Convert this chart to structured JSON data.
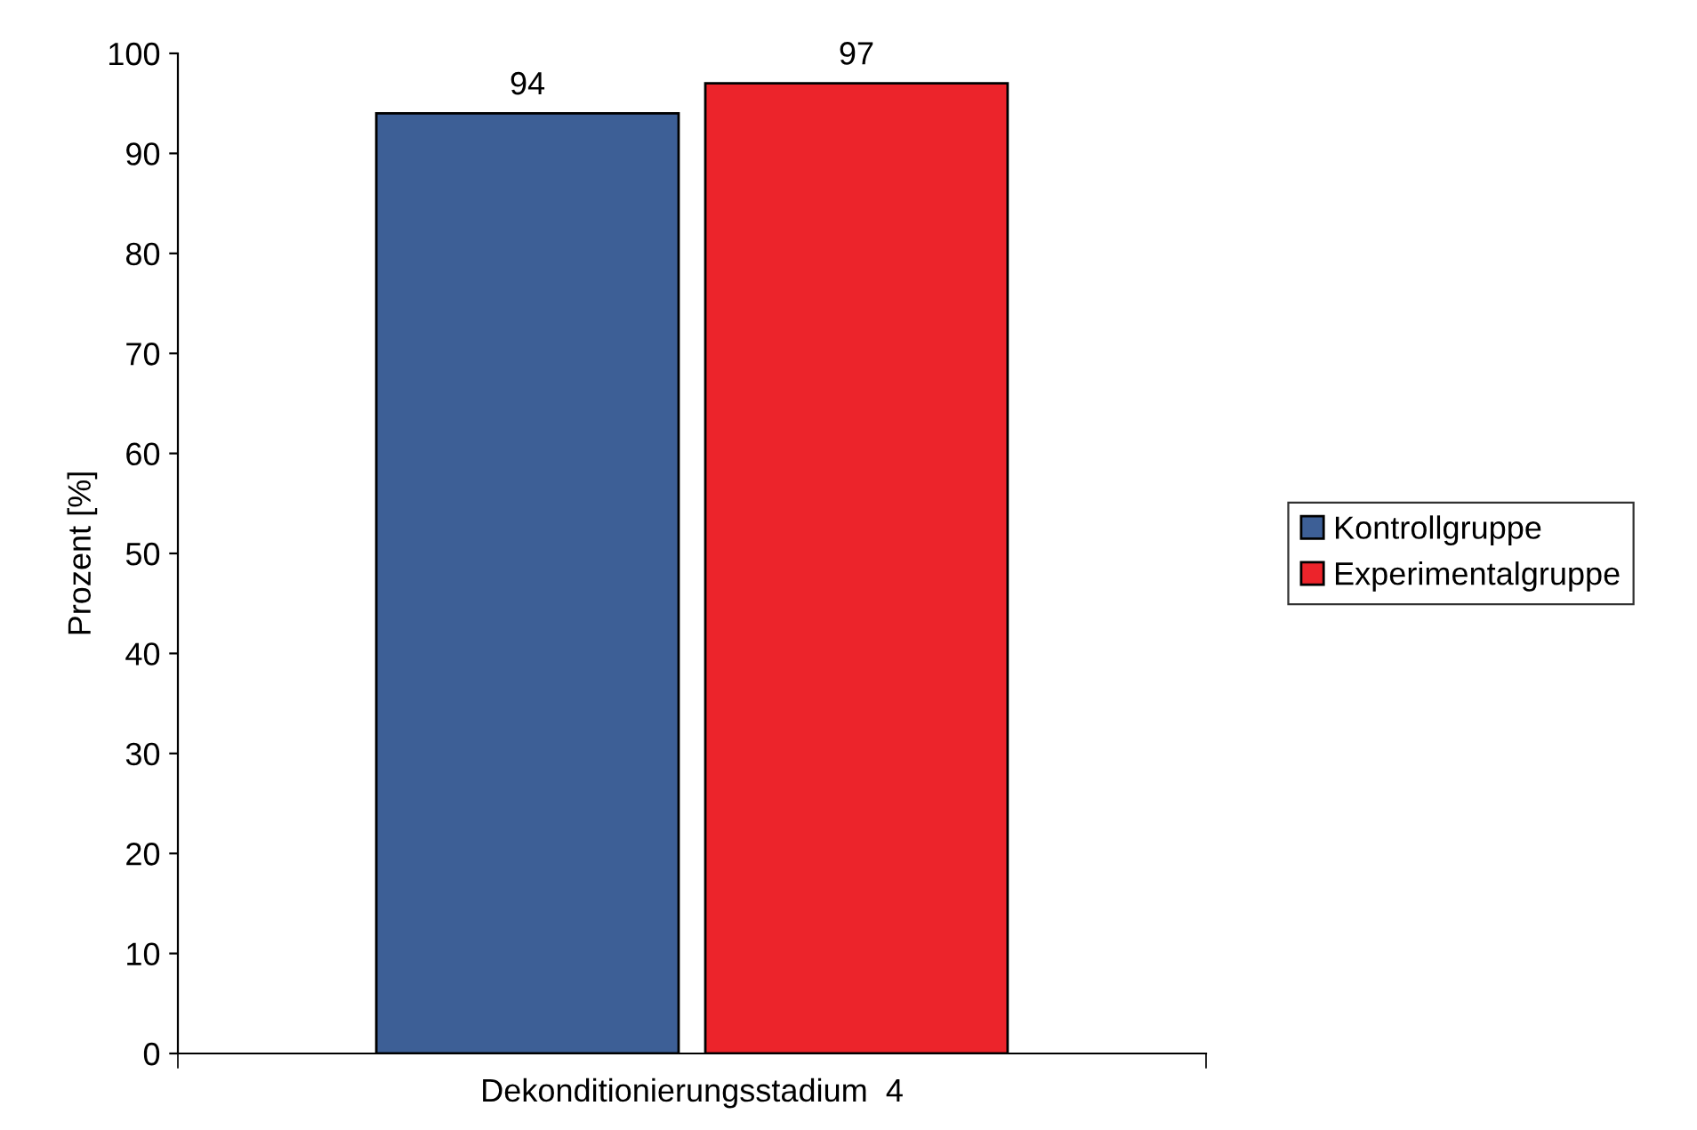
{
  "chart_data": {
    "type": "bar",
    "ylabel": "Prozent [%]",
    "categories": [
      "Dekonditionierungsstadium  4"
    ],
    "series": [
      {
        "name": "Kontrollgruppe",
        "color": "#3d5f96",
        "values": [
          94
        ]
      },
      {
        "name": "Experimentalgruppe",
        "color": "#ec242b",
        "values": [
          97
        ]
      }
    ],
    "ylim": [
      0,
      100
    ],
    "yticks": [
      0,
      10,
      20,
      30,
      40,
      50,
      60,
      70,
      80,
      90,
      100
    ],
    "data_labels": true,
    "legend": "right",
    "grid": false
  }
}
